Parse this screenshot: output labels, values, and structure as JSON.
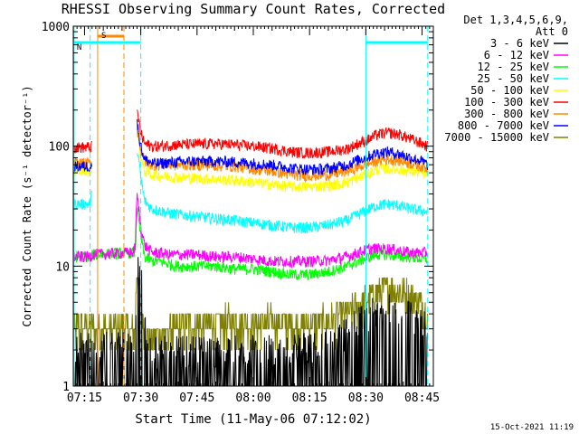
{
  "chart_data": {
    "type": "line",
    "title": "RHESSI Observing Summary Count Rates, Corrected",
    "xlabel": "Start Time (11-May-06 07:12:02)",
    "ylabel": "Corrected Count Rate (s⁻¹ detector⁻¹)",
    "yscale": "log",
    "ylim": [
      1,
      1000
    ],
    "xlim_minutes": [
      0,
      96
    ],
    "x_ticks": [
      {
        "label": "07:15",
        "minute": 3
      },
      {
        "label": "07:30",
        "minute": 18
      },
      {
        "label": "07:45",
        "minute": 33
      },
      {
        "label": "08:00",
        "minute": 48
      },
      {
        "label": "08:15",
        "minute": 63
      },
      {
        "label": "08:30",
        "minute": 78
      },
      {
        "label": "08:45",
        "minute": 93
      }
    ],
    "y_ticks": [
      {
        "label": "1",
        "value": 1
      },
      {
        "label": "10",
        "value": 10
      },
      {
        "label": "100",
        "value": 100
      },
      {
        "label": "1000",
        "value": 1000
      }
    ],
    "legend_header": [
      "Det 1,3,4,5,6,9,",
      "Att 0"
    ],
    "legend_position": "top-right",
    "timestamp": "15-Oct-2021 11:19",
    "x": [
      0.0,
      4.5,
      5.0,
      16.0,
      16.5,
      17.0,
      18.0,
      19.0,
      21.0,
      23.0,
      25.0,
      28.0,
      33.0,
      38.0,
      43.0,
      48.0,
      53.0,
      58.0,
      63.0,
      68.0,
      73.0,
      76.0,
      79.0,
      81.0,
      84.0,
      87.0,
      90.0,
      93.0,
      94.5
    ],
    "series": [
      {
        "name": "3 - 6 keV",
        "color": "#000000",
        "kind": "bursty",
        "values": [
          1.5,
          1.5,
          1.5,
          1.5,
          1.5,
          6,
          8,
          3,
          1.4,
          1.4,
          1.4,
          1.4,
          1.4,
          1.4,
          1.4,
          1.4,
          1.4,
          1.4,
          1.5,
          1.6,
          2.0,
          2.4,
          2.8,
          3.0,
          3.2,
          3.0,
          2.8,
          2.4,
          2.0
        ]
      },
      {
        "name": "6 - 12 keV",
        "color": "#ff00ff",
        "values": [
          12,
          12,
          12.5,
          13,
          15,
          40,
          22,
          15,
          13,
          13,
          12.5,
          12.5,
          12.5,
          12,
          12,
          11.5,
          11,
          11,
          11,
          11.2,
          12,
          13,
          14,
          14,
          14,
          13.5,
          13,
          13,
          13
        ]
      },
      {
        "name": "12 - 25 keV",
        "color": "#00ff00",
        "values": [
          12,
          12,
          12.5,
          13,
          13,
          30,
          18,
          12,
          11,
          11,
          10.5,
          10,
          10,
          10,
          9.5,
          9.5,
          9,
          8.5,
          8.5,
          9,
          10,
          11,
          12,
          12.5,
          12.5,
          12,
          12,
          11.5,
          11.5
        ]
      },
      {
        "name": "25 - 50 keV",
        "color": "#00ffff",
        "values": [
          33,
          33,
          40,
          null,
          null,
          100,
          55,
          35,
          30,
          29,
          28,
          27,
          26,
          25,
          24,
          23,
          22,
          21,
          21,
          22,
          24,
          27,
          30,
          32,
          33,
          32,
          30,
          29,
          28
        ]
      },
      {
        "name": "50 - 100 keV",
        "color": "#ffff00",
        "values": [
          63,
          63,
          65,
          null,
          null,
          160,
          80,
          62,
          58,
          57,
          56,
          55,
          54,
          53,
          52,
          50,
          48,
          46,
          46,
          47,
          50,
          55,
          60,
          64,
          65,
          64,
          62,
          60,
          58
        ]
      },
      {
        "name": "100 - 300 keV",
        "color": "#ff0000",
        "values": [
          98,
          98,
          100,
          null,
          null,
          200,
          130,
          105,
          100,
          100,
          102,
          103,
          104,
          105,
          103,
          100,
          96,
          90,
          88,
          90,
          95,
          105,
          115,
          125,
          130,
          125,
          115,
          105,
          100
        ]
      },
      {
        "name": "300 - 800 keV",
        "color": "#ff8800",
        "values": [
          72,
          72,
          75,
          null,
          null,
          140,
          95,
          75,
          70,
          70,
          70,
          70,
          70,
          69,
          68,
          65,
          62,
          58,
          57,
          58,
          62,
          67,
          72,
          76,
          78,
          76,
          72,
          68,
          65
        ]
      },
      {
        "name": "800 - 7000 keV",
        "color": "#0000ff",
        "values": [
          68,
          68,
          70,
          null,
          null,
          160,
          100,
          78,
          72,
          72,
          73,
          74,
          75,
          75,
          74,
          72,
          70,
          66,
          64,
          65,
          70,
          77,
          83,
          88,
          90,
          86,
          80,
          75,
          70
        ]
      },
      {
        "name": "7000 - 15000 keV",
        "color": "#808000",
        "kind": "steps",
        "values": [
          3,
          3,
          3,
          3,
          3,
          12,
          4,
          3,
          2.4,
          2.5,
          2.7,
          3,
          3.2,
          3.3,
          3.4,
          3.4,
          3.4,
          3.3,
          3.2,
          3.5,
          4.0,
          4.6,
          5.3,
          6.0,
          6.6,
          6.2,
          5.6,
          4.8,
          4.2
        ]
      }
    ],
    "annotations": {
      "vertical_lines": [
        {
          "minute": 0.2,
          "color": "#00ffff",
          "style": "solid"
        },
        {
          "minute": 4.5,
          "color": "#00ffff",
          "style": "dashed"
        },
        {
          "minute": 6.5,
          "color": "#ff8800",
          "style": "solid"
        },
        {
          "minute": 13.5,
          "color": "#ff8800",
          "style": "dashed"
        },
        {
          "minute": 18.0,
          "color": "#00ffff",
          "style": "dashed"
        },
        {
          "minute": 78.0,
          "color": "#00ffff",
          "style": "solid"
        },
        {
          "minute": 94.5,
          "color": "#00ffff",
          "style": "dashed"
        }
      ],
      "bars": [
        {
          "label": "S",
          "color": "#ff8800",
          "from": 6.5,
          "to": 13.5,
          "level": 0
        },
        {
          "label": "N",
          "color": "#00ffff",
          "from": 0.2,
          "to": 18.0,
          "level": 1
        },
        {
          "label": "",
          "color": "#00ffff",
          "from": 78.0,
          "to": 94.5,
          "level": 1
        }
      ]
    }
  }
}
